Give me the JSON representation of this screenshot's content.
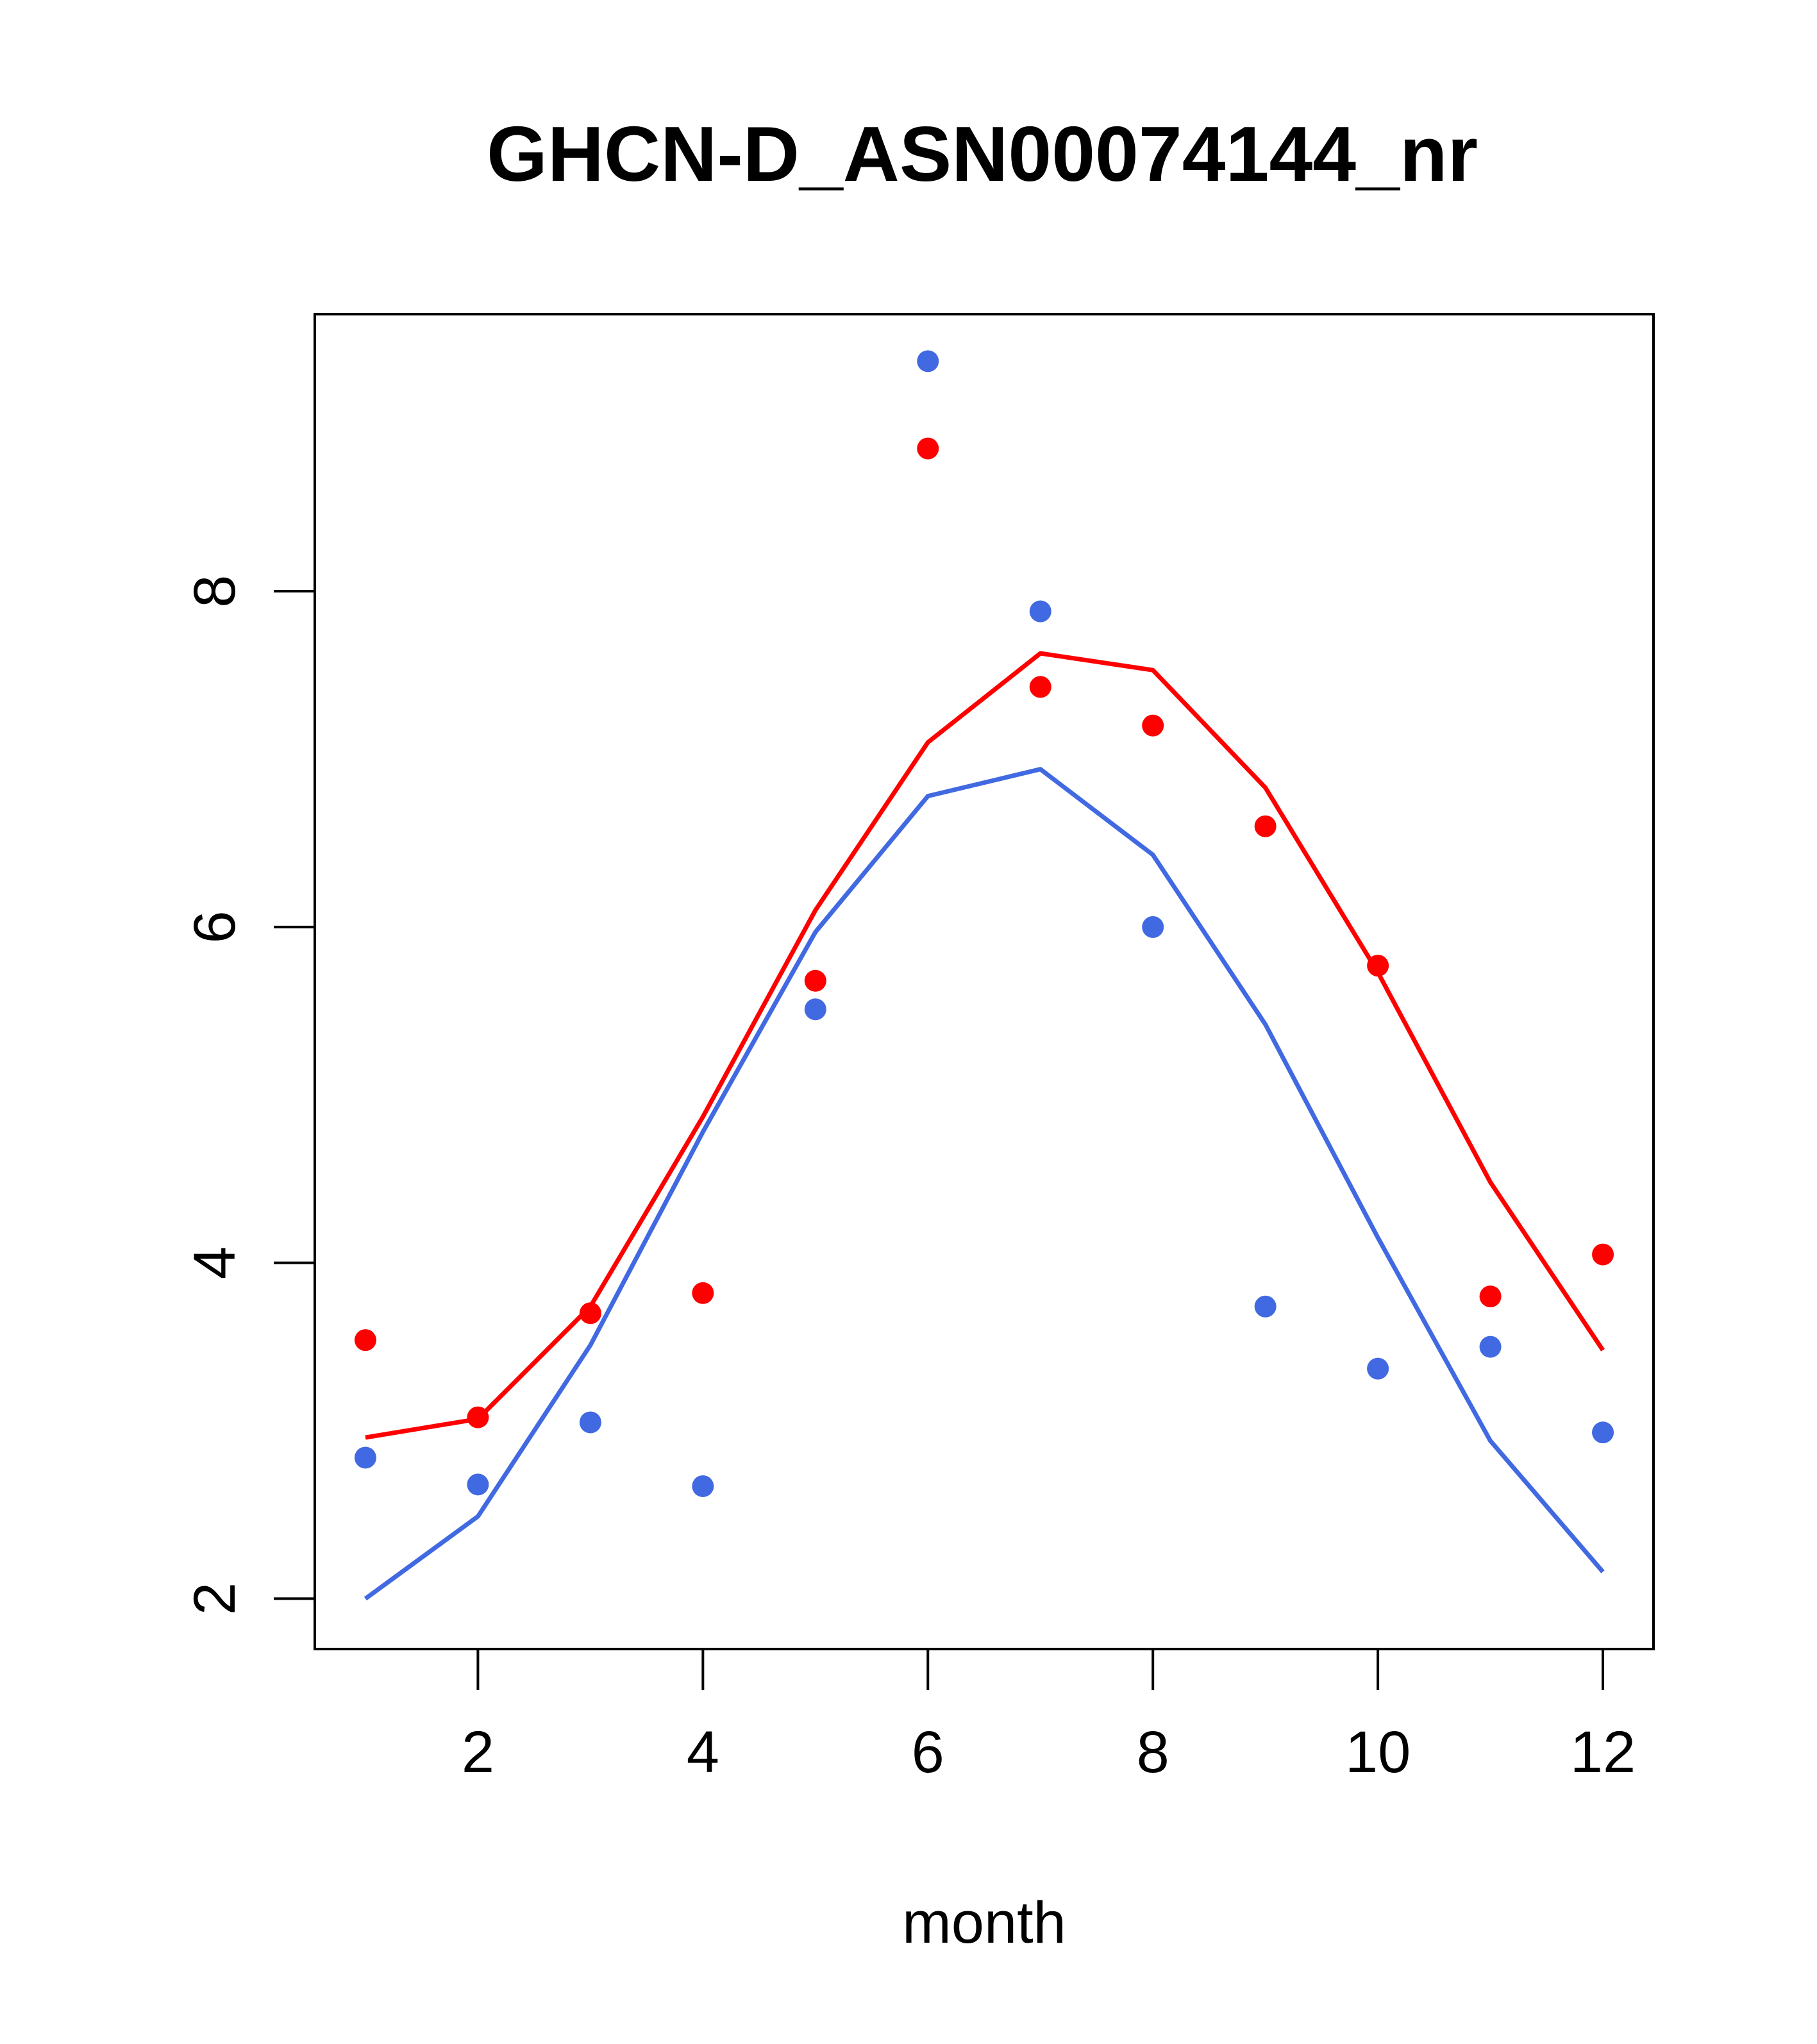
{
  "chart_data": {
    "type": "line",
    "title": "GHCN-D_ASN00074144_nr",
    "xlabel": "month",
    "ylabel": "",
    "xlim": [
      0.55,
      12.45
    ],
    "ylim": [
      1.7,
      9.65
    ],
    "x_ticks": [
      2,
      4,
      6,
      8,
      10,
      12
    ],
    "y_ticks": [
      2,
      4,
      6,
      8
    ],
    "grid": false,
    "legend": "none",
    "x": [
      1,
      2,
      3,
      4,
      5,
      6,
      7,
      8,
      9,
      10,
      11,
      12
    ],
    "series": [
      {
        "color": "#FF0000",
        "line": [
          2.96,
          3.07,
          3.74,
          4.87,
          6.1,
          7.1,
          7.63,
          7.53,
          6.83,
          5.73,
          4.48,
          3.48
        ],
        "points": [
          3.54,
          3.08,
          3.7,
          3.82,
          5.68,
          8.85,
          7.43,
          7.2,
          6.6,
          5.77,
          3.8,
          4.05
        ]
      },
      {
        "color": "#4169E1",
        "line": [
          2.0,
          2.49,
          3.51,
          4.78,
          5.97,
          6.78,
          6.94,
          6.43,
          5.42,
          4.15,
          2.94,
          2.16
        ],
        "points": [
          2.84,
          2.68,
          3.05,
          2.67,
          5.51,
          9.37,
          7.88,
          6.0,
          3.74,
          3.37,
          3.5,
          2.99
        ]
      }
    ]
  }
}
